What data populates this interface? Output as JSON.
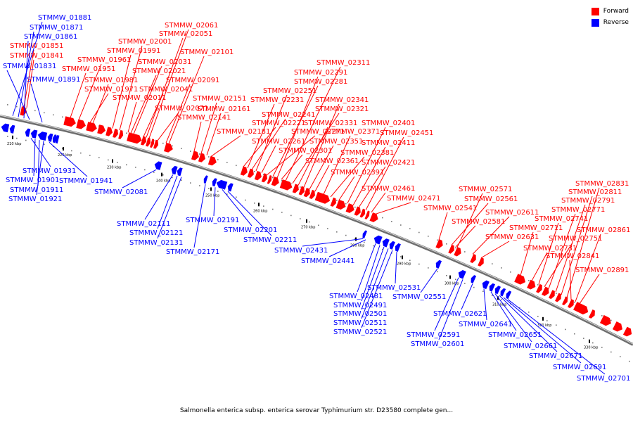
{
  "legend": {
    "forward_label": "Forward",
    "reverse_label": "Reverse",
    "forward_color": "#ff0000",
    "reverse_color": "#0000ff"
  },
  "caption": "Salmonella enterica subsp. enterica serovar Typhimurium str. D23580 complete gen...",
  "genes_forward": [
    "STMMW_01851",
    "STMMW_01841",
    "STMMW_01951",
    "STMMW_01961",
    "STMMW_01971",
    "STMMW_01981",
    "STMMW_01991",
    "STMMW_02001",
    "STMMW_02011",
    "STMMW_02021",
    "STMMW_02031",
    "STMMW_02041",
    "STMMW_02051",
    "STMMW_02061",
    "STMMW_02071",
    "STMMW_02091",
    "STMMW_02101",
    "STMMW_02141",
    "STMMW_02151",
    "STMMW_02161",
    "STMMW_02181",
    "STMMW_02221",
    "STMMW_02231",
    "STMMW_02241",
    "STMMW_02251",
    "STMMW_02261",
    "STMMW_02271",
    "STMMW_02281",
    "STMMW_02291",
    "STMMW_02301",
    "STMMW_02311",
    "STMMW_02321",
    "STMMW_02331",
    "STMMW_02341",
    "STMMW_02351",
    "STMMW_02361",
    "STMMW_02371",
    "STMMW_02381",
    "STMMW_02391",
    "STMMW_02401",
    "STMMW_02411",
    "STMMW_02421",
    "STMMW_02451",
    "STMMW_02461",
    "STMMW_02471",
    "STMMW_02541",
    "STMMW_02561",
    "STMMW_02571",
    "STMMW_02581",
    "STMMW_02611",
    "STMMW_02631",
    "STMMW_02711",
    "STMMW_02731",
    "STMMW_02741",
    "STMMW_02751",
    "STMMW_02771",
    "STMMW_02791",
    "STMMW_02811",
    "STMMW_02831",
    "STMMW_02841",
    "STMMW_02861",
    "STMMW_02891"
  ],
  "genes_reverse": [
    "STMMW_01881",
    "STMMW_01871",
    "STMMW_01861",
    "STMMW_01831",
    "STMMW_01891",
    "STMMW_01931",
    "STMMW_01941",
    "STMMW_01901",
    "STMMW_01911",
    "STMMW_01921",
    "STMMW_02081",
    "STMMW_02111",
    "STMMW_02121",
    "STMMW_02131",
    "STMMW_02171",
    "STMMW_02191",
    "STMMW_02201",
    "STMMW_02211",
    "STMMW_02431",
    "STMMW_02441",
    "STMMW_02481",
    "STMMW_02491",
    "STMMW_02501",
    "STMMW_02511",
    "STMMW_02521",
    "STMMW_02531",
    "STMMW_02551",
    "STMMW_02591",
    "STMMW_02601",
    "STMMW_02621",
    "STMMW_02641",
    "STMMW_02651",
    "STMMW_02661",
    "STMMW_02671",
    "STMMW_02691",
    "STMMW_02701"
  ],
  "ticks": [
    "210 kbp",
    "220 kbp",
    "230 kbp",
    "240 kbp",
    "250 kbp",
    "260 kbp",
    "270 kbp",
    "280 kbp",
    "290 kbp",
    "300 kbp",
    "310 kbp",
    "320 kbp",
    "330 kbp"
  ]
}
